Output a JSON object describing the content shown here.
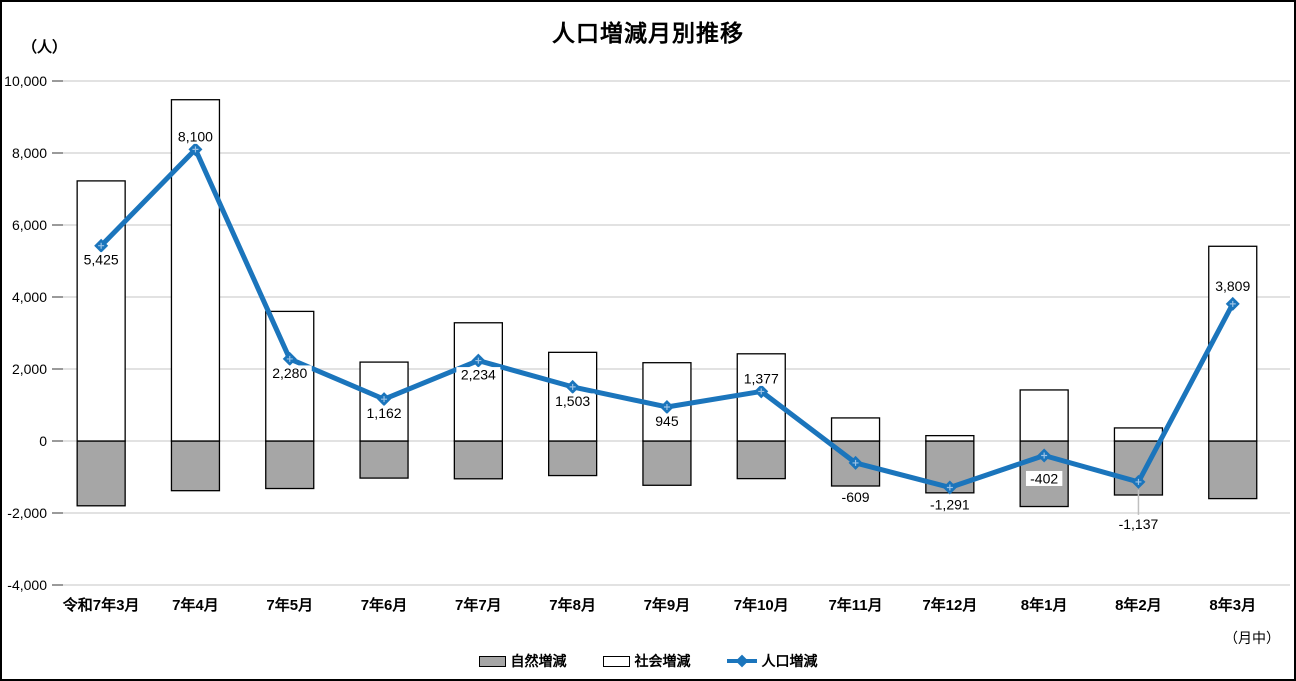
{
  "chart_data": {
    "type": "bar+line",
    "title": "人口増減月別推移",
    "unit_label": "（人）",
    "x_note": "（月中）",
    "categories": [
      "令和7年3月",
      "7年4月",
      "7年5月",
      "7年6月",
      "7年7月",
      "7年8月",
      "7年9月",
      "7年10月",
      "7年11月",
      "7年12月",
      "8年1月",
      "8年2月",
      "8年3月"
    ],
    "series": [
      {
        "name": "自然増減",
        "type": "bar",
        "color": "#A6A6A6",
        "values": [
          -1800,
          -1380,
          -1320,
          -1030,
          -1050,
          -960,
          -1230,
          -1045,
          -1250,
          -1440,
          -1820,
          -1500,
          -1600
        ]
      },
      {
        "name": "社会増減",
        "type": "bar",
        "color": "#FFFFFF",
        "values": [
          7225,
          9480,
          3600,
          2192,
          3284,
          2463,
          2175,
          2422,
          641,
          149,
          1418,
          363,
          5409
        ]
      },
      {
        "name": "人口増減",
        "type": "line",
        "color": "#1B75BC",
        "values": [
          5425,
          8100,
          2280,
          1162,
          2234,
          1503,
          945,
          1377,
          -609,
          -1291,
          -402,
          -1137,
          3809
        ],
        "data_labels": [
          "5,425",
          "8,100",
          "2,280",
          "1,162",
          "2,234",
          "1,503",
          "945",
          "1,377",
          "-609",
          "-1,291",
          "-402",
          "-1,137",
          "3,809"
        ],
        "label_layout": [
          {
            "pos": "below",
            "gap": 8
          },
          {
            "pos": "above",
            "gap": 8
          },
          {
            "pos": "below",
            "gap": 8
          },
          {
            "pos": "below",
            "gap": 8
          },
          {
            "pos": "below",
            "gap": 8
          },
          {
            "pos": "below",
            "gap": 8
          },
          {
            "pos": "below",
            "gap": 8
          },
          {
            "pos": "above",
            "gap": 8
          },
          {
            "pos": "below",
            "gap": 28
          },
          {
            "pos": "below",
            "gap": 11
          },
          {
            "pos": "below",
            "gap": 17
          },
          {
            "pos": "below",
            "gap": 36,
            "leader": true
          },
          {
            "pos": "above",
            "gap": 13
          }
        ]
      }
    ],
    "y_axis": {
      "min": -4000,
      "max": 10000,
      "step": 2000,
      "tick_labels": [
        "-4,000",
        "-2,000",
        "0",
        "2,000",
        "4,000",
        "6,000",
        "8,000",
        "10,000"
      ]
    },
    "legend_position": "bottom",
    "grid": true,
    "colors": {
      "grid": "#D9D9D9",
      "tick": "#7F7F7F",
      "bar_border": "#000000",
      "label_text": "#000000",
      "leader": "#BFBFBF",
      "background": "#FFFFFF"
    }
  }
}
